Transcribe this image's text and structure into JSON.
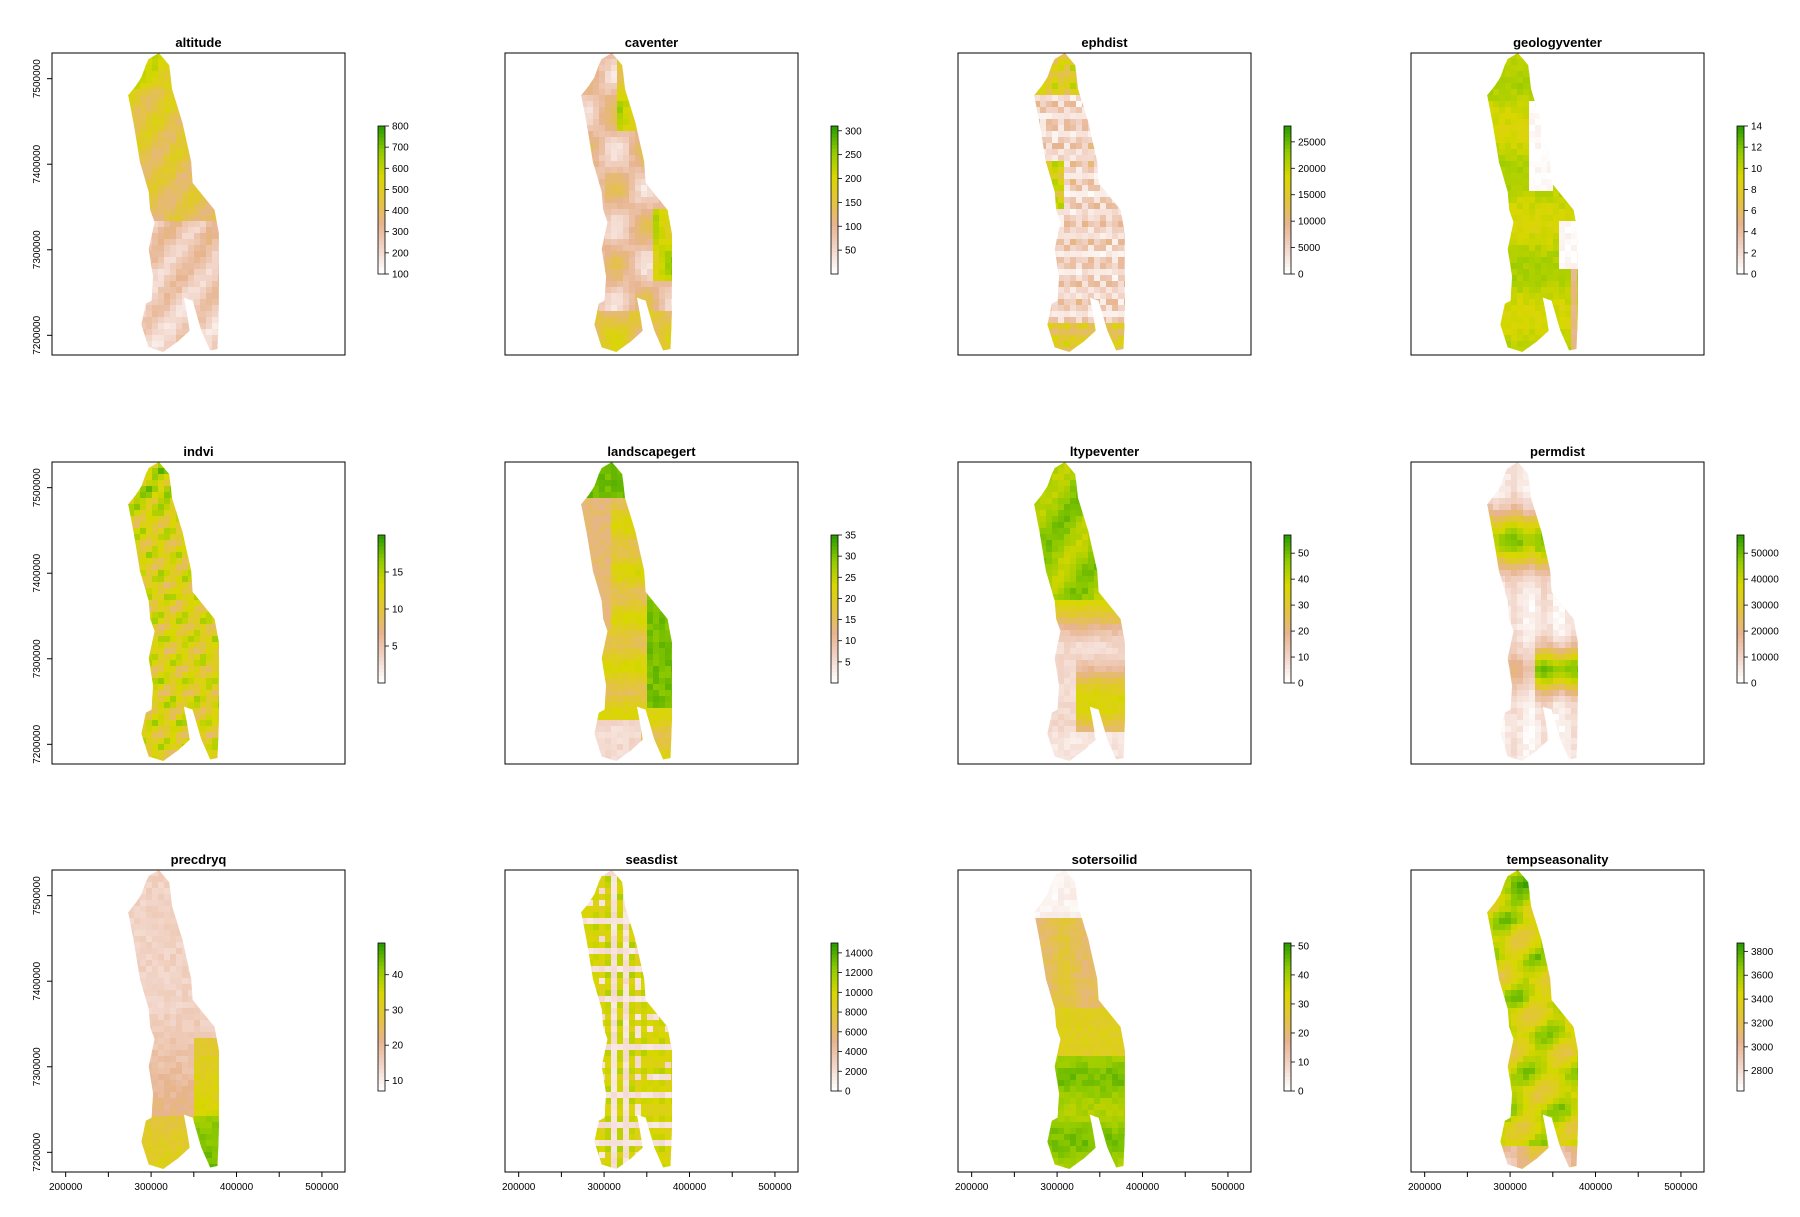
{
  "palette": [
    "#ffffff",
    "#f2d5c9",
    "#e7b48f",
    "#e3c53a",
    "#d8d700",
    "#92cb00",
    "#2f9e00"
  ],
  "chart_data": {
    "type": "heatmap",
    "x_ticks": [
      200000,
      250000,
      300000,
      350000,
      400000,
      450000,
      500000
    ],
    "x_tick_labels": [
      "200000",
      "",
      "300000",
      "",
      "400000",
      "",
      "500000"
    ],
    "y_ticks": [
      7200000,
      7300000,
      7400000,
      7500000
    ],
    "y_tick_labels": [
      "7200000",
      "7300000",
      "7400000",
      "7500000"
    ],
    "xlim": [
      184000,
      527000
    ],
    "ylim": [
      7177000,
      7530000
    ],
    "panels": [
      {
        "title": "altitude",
        "legend_ticks": [
          "100",
          "200",
          "300",
          "400",
          "500",
          "600",
          "700",
          "800"
        ],
        "legend_range": [
          100,
          800
        ],
        "legend_tick_values": [
          100,
          200,
          300,
          400,
          500,
          600,
          700,
          800
        ],
        "pattern": "altitude"
      },
      {
        "title": "caventer",
        "legend_ticks": [
          "50",
          "100",
          "150",
          "200",
          "250",
          "300"
        ],
        "legend_range": [
          0,
          310
        ],
        "legend_tick_values": [
          50,
          100,
          150,
          200,
          250,
          300
        ],
        "pattern": "blobs"
      },
      {
        "title": "ephdist",
        "legend_ticks": [
          "0",
          "5000",
          "10000",
          "15000",
          "20000",
          "25000"
        ],
        "legend_range": [
          0,
          28000
        ],
        "legend_tick_values": [
          0,
          5000,
          10000,
          15000,
          20000,
          25000
        ],
        "pattern": "ephdist"
      },
      {
        "title": "geologyventer",
        "legend_ticks": [
          "0",
          "2",
          "4",
          "6",
          "8",
          "10",
          "12",
          "14"
        ],
        "legend_range": [
          0,
          14
        ],
        "legend_tick_values": [
          0,
          2,
          4,
          6,
          8,
          10,
          12,
          14
        ],
        "pattern": "geology"
      },
      {
        "title": "indvi",
        "legend_ticks": [
          "5",
          "10",
          "15"
        ],
        "legend_range": [
          0,
          20
        ],
        "legend_tick_values": [
          5,
          10,
          15
        ],
        "pattern": "indvi"
      },
      {
        "title": "landscapegert",
        "legend_ticks": [
          "5",
          "10",
          "15",
          "20",
          "25",
          "30",
          "35"
        ],
        "legend_range": [
          0,
          35
        ],
        "legend_tick_values": [
          5,
          10,
          15,
          20,
          25,
          30,
          35
        ],
        "pattern": "landscape"
      },
      {
        "title": "ltypeventer",
        "legend_ticks": [
          "0",
          "10",
          "20",
          "30",
          "40",
          "50"
        ],
        "legend_range": [
          0,
          57
        ],
        "legend_tick_values": [
          0,
          10,
          20,
          30,
          40,
          50
        ],
        "pattern": "ltype"
      },
      {
        "title": "permdist",
        "legend_ticks": [
          "0",
          "10000",
          "20000",
          "30000",
          "40000",
          "50000"
        ],
        "legend_range": [
          0,
          57000
        ],
        "legend_tick_values": [
          0,
          10000,
          20000,
          30000,
          40000,
          50000
        ],
        "pattern": "permdist"
      },
      {
        "title": "precdryq",
        "legend_ticks": [
          "10",
          "20",
          "30",
          "40"
        ],
        "legend_range": [
          7,
          49
        ],
        "legend_tick_values": [
          10,
          20,
          30,
          40
        ],
        "pattern": "precdryq"
      },
      {
        "title": "seasdist",
        "legend_ticks": [
          "0",
          "2000",
          "4000",
          "6000",
          "8000",
          "10000",
          "12000",
          "14000"
        ],
        "legend_range": [
          0,
          15000
        ],
        "legend_tick_values": [
          0,
          2000,
          4000,
          6000,
          8000,
          10000,
          12000,
          14000
        ],
        "pattern": "seasdist"
      },
      {
        "title": "sotersoilid",
        "legend_ticks": [
          "0",
          "10",
          "20",
          "30",
          "40",
          "50"
        ],
        "legend_range": [
          0,
          51
        ],
        "legend_tick_values": [
          0,
          10,
          20,
          30,
          40,
          50
        ],
        "pattern": "soter"
      },
      {
        "title": "tempseasonality",
        "legend_ticks": [
          "2800",
          "3000",
          "3200",
          "3400",
          "3600",
          "3800"
        ],
        "legend_range": [
          2630,
          3870
        ],
        "legend_tick_values": [
          2800,
          3000,
          3200,
          3400,
          3600,
          3800
        ],
        "pattern": "tempseas"
      }
    ]
  }
}
